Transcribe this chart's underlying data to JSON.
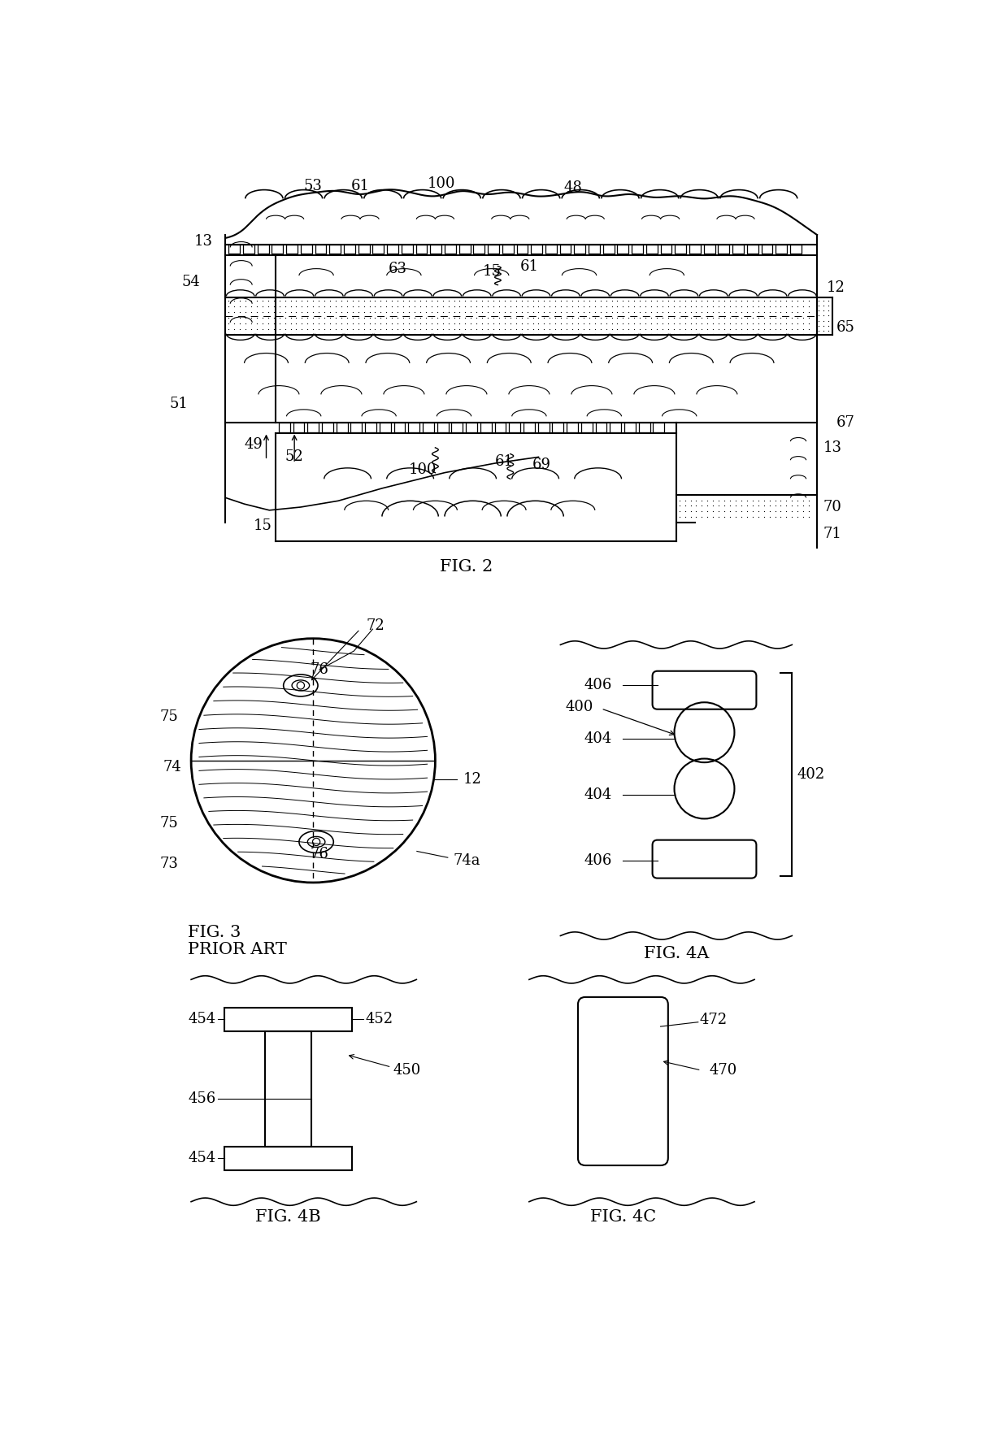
{
  "fig_width": 12.4,
  "fig_height": 17.67,
  "bg_color": "#ffffff",
  "lc": "#000000",
  "fig2_label": "FIG. 2",
  "fig3_label": "FIG. 3",
  "fig3_sub": "PRIOR ART",
  "fig4a_label": "FIG. 4A",
  "fig4b_label": "FIG. 4B",
  "fig4c_label": "FIG. 4C",
  "font_size": 13,
  "caption_size": 15
}
